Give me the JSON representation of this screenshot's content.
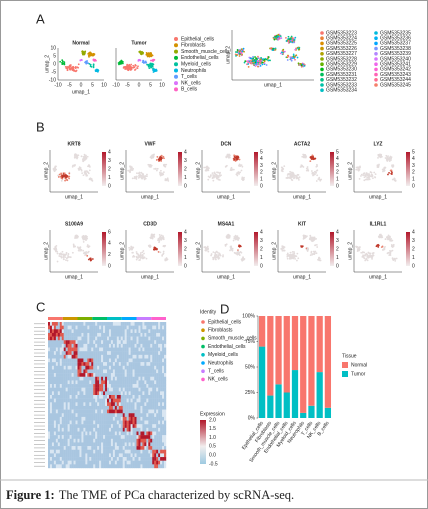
{
  "panel_labels": [
    "A",
    "B",
    "C",
    "D"
  ],
  "panel_a": {
    "umap_titles": [
      "Normal",
      "Tumor"
    ],
    "x_label": "umap_1",
    "y_label": "umap_2",
    "xticks": [
      -10,
      -5,
      0,
      5,
      10
    ],
    "yticks": [
      -10,
      -5,
      0,
      5,
      10
    ],
    "cell_types": [
      {
        "name": "Epithelial_cells",
        "color": "#F8766D"
      },
      {
        "name": "Fibroblasts",
        "color": "#D39200"
      },
      {
        "name": "Smooth_muscle_cells",
        "color": "#93AA00"
      },
      {
        "name": "Endothelial_cells",
        "color": "#00BA38"
      },
      {
        "name": "Myeloid_cells",
        "color": "#00C19F"
      },
      {
        "name": "Neutrophils",
        "color": "#00B9E3"
      },
      {
        "name": "T_cells",
        "color": "#619CFF"
      },
      {
        "name": "NK_cells",
        "color": "#DB72FB"
      },
      {
        "name": "B_cells",
        "color": "#FF61C3"
      }
    ],
    "samples": [
      {
        "name": "GSM5353223",
        "color": "#F8766D"
      },
      {
        "name": "GSM5353224",
        "color": "#EC8239"
      },
      {
        "name": "GSM5353225",
        "color": "#DB8E00"
      },
      {
        "name": "GSM5353226",
        "color": "#C79800"
      },
      {
        "name": "GSM5353227",
        "color": "#AEA200"
      },
      {
        "name": "GSM5353228",
        "color": "#8FAA00"
      },
      {
        "name": "GSM5353229",
        "color": "#64B200"
      },
      {
        "name": "GSM5353230",
        "color": "#00B81B"
      },
      {
        "name": "GSM5353231",
        "color": "#00BD5C"
      },
      {
        "name": "GSM5353232",
        "color": "#00C085"
      },
      {
        "name": "GSM5353233",
        "color": "#00C1A7"
      },
      {
        "name": "GSM5353234",
        "color": "#00BFC4"
      },
      {
        "name": "GSM5353235",
        "color": "#00BADE"
      },
      {
        "name": "GSM5353236",
        "color": "#00B2F3"
      },
      {
        "name": "GSM5353237",
        "color": "#00A6FF"
      },
      {
        "name": "GSM5353238",
        "color": "#7C96FF"
      },
      {
        "name": "GSM5353239",
        "color": "#B385FF"
      },
      {
        "name": "GSM5353240",
        "color": "#D874FD"
      },
      {
        "name": "GSM5353241",
        "color": "#EF67EB"
      },
      {
        "name": "GSM5353242",
        "color": "#FD61D3"
      },
      {
        "name": "GSM5353243",
        "color": "#FF63B6"
      },
      {
        "name": "GSM5353244",
        "color": "#FF6C91"
      },
      {
        "name": "GSM5353245",
        "color": "#F57F6A"
      }
    ]
  },
  "panel_b": {
    "x_label": "umap_1",
    "y_label": "umap_2",
    "genes": [
      {
        "name": "KRT8",
        "ticks": [
          0,
          1,
          2,
          3,
          4
        ]
      },
      {
        "name": "VWF",
        "ticks": [
          0,
          1,
          2,
          3,
          4
        ]
      },
      {
        "name": "DCN",
        "ticks": [
          0,
          1,
          2,
          3,
          4,
          5
        ]
      },
      {
        "name": "ACTA2",
        "ticks": [
          0,
          1,
          2,
          3,
          4,
          5
        ]
      },
      {
        "name": "LYZ",
        "ticks": [
          0,
          1,
          2,
          3,
          4,
          5
        ]
      },
      {
        "name": "S100A9",
        "ticks": [
          0,
          2,
          4,
          6
        ]
      },
      {
        "name": "CD3D",
        "ticks": [
          0,
          1,
          2,
          3,
          4
        ]
      },
      {
        "name": "MS4A1",
        "ticks": [
          0,
          1,
          2,
          3,
          4
        ]
      },
      {
        "name": "KIT",
        "ticks": [
          0,
          1,
          2,
          3,
          4
        ]
      },
      {
        "name": "IL1RL1",
        "ticks": [
          0,
          1,
          2,
          3,
          4
        ]
      }
    ]
  },
  "panel_c": {
    "identity_title": "Identity",
    "identities": [
      {
        "name": "Epithelial_cells",
        "color": "#F8766D"
      },
      {
        "name": "Fibroblasts",
        "color": "#CD9600"
      },
      {
        "name": "Smooth_muscle_cells",
        "color": "#7CAE00"
      },
      {
        "name": "Endothelial_cells",
        "color": "#00BE67"
      },
      {
        "name": "Myeloid_cells",
        "color": "#00BFC4"
      },
      {
        "name": "Neutrophils",
        "color": "#00A9FF"
      },
      {
        "name": "T_cells",
        "color": "#C77CFF"
      },
      {
        "name": "NK_cells",
        "color": "#FF61CC"
      }
    ],
    "expression_title": "Expression",
    "expression_ticks": [
      {
        "value": 2,
        "label": "2.0"
      },
      {
        "value": 1.5,
        "label": "1.5"
      },
      {
        "value": 1,
        "label": "1.0"
      },
      {
        "value": 0.5,
        "label": "0.5"
      },
      {
        "value": 0,
        "label": "0.0"
      },
      {
        "value": -0.5,
        "label": "-0.5"
      }
    ]
  },
  "chart_data": {
    "type": "stacked_bar",
    "categories": [
      "Epithelial_cells",
      "Fibroblasts",
      "Smooth_muscle_cells",
      "Endothelial_cells",
      "Myeloid_cells",
      "Neutrophils",
      "T_cells",
      "NK_cells",
      "B_cells"
    ],
    "series": [
      {
        "name": "Tumor",
        "color": "#00BFC4",
        "values": [
          70,
          22,
          33,
          25,
          47,
          5,
          12,
          45,
          10
        ]
      },
      {
        "name": "Normal",
        "color": "#F8766D",
        "values": [
          30,
          78,
          67,
          75,
          53,
          95,
          88,
          55,
          90
        ]
      }
    ],
    "legend_title": "Tissue",
    "ylim": [
      0,
      100
    ],
    "yticks": [
      {
        "value": 0,
        "label": "0%"
      },
      {
        "value": 25,
        "label": "25%"
      },
      {
        "value": 50,
        "label": "50%"
      },
      {
        "value": 75,
        "label": "75%"
      },
      {
        "value": 100,
        "label": "100%"
      }
    ]
  },
  "caption": {
    "label": "Figure 1:",
    "text": "The TME of PCa characterized by scRNA-seq."
  }
}
